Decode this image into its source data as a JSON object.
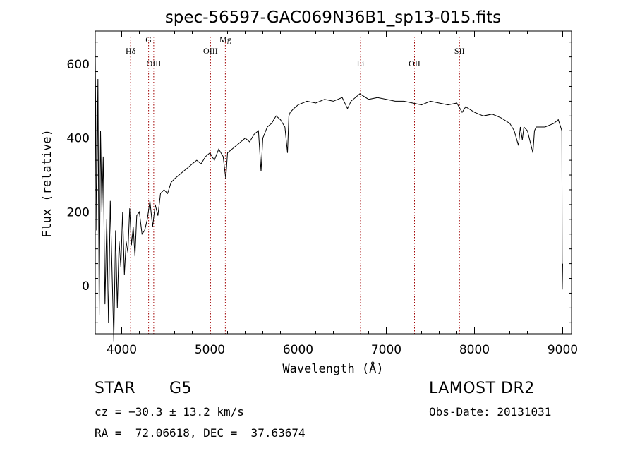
{
  "chart_data": {
    "type": "line",
    "title": "spec-56597-GAC069N36B1_sp13-015.fits",
    "xlabel": "Wavelength (Å)",
    "ylabel": "Flux (relative)",
    "xlim": [
      3700,
      9100
    ],
    "ylim": [
      -130,
      690
    ],
    "x_ticks": [
      4000,
      5000,
      6000,
      7000,
      8000,
      9000
    ],
    "x_tick_labels": [
      "4000",
      "5000",
      "6000",
      "7000",
      "8000",
      "9000"
    ],
    "y_ticks": [
      0,
      200,
      400,
      600
    ],
    "y_tick_labels": [
      "0",
      "200",
      "400",
      "600"
    ],
    "series": [
      {
        "x": [
          3700,
          3715,
          3730,
          3745,
          3760,
          3775,
          3790,
          3810,
          3830,
          3850,
          3870,
          3890,
          3910,
          3930,
          3950,
          3970,
          3990,
          4010,
          4030,
          4050,
          4070,
          4090,
          4110,
          4130,
          4150,
          4170,
          4200,
          4230,
          4260,
          4290,
          4320,
          4350,
          4380,
          4410,
          4440,
          4480,
          4520,
          4560,
          4600,
          4650,
          4700,
          4750,
          4800,
          4850,
          4900,
          4950,
          5000,
          5050,
          5100,
          5150,
          5180,
          5200,
          5250,
          5300,
          5350,
          5400,
          5450,
          5500,
          5550,
          5580,
          5600,
          5650,
          5700,
          5750,
          5800,
          5850,
          5880,
          5895,
          5910,
          5950,
          6000,
          6100,
          6200,
          6300,
          6400,
          6500,
          6560,
          6600,
          6700,
          6800,
          6900,
          7000,
          7100,
          7200,
          7300,
          7400,
          7500,
          7600,
          7700,
          7800,
          7860,
          7900,
          8000,
          8100,
          8200,
          8300,
          8400,
          8450,
          8498,
          8520,
          8542,
          8560,
          8600,
          8662,
          8680,
          8700,
          8800,
          8900,
          8950,
          8990,
          8995,
          9000
        ],
        "y": [
          630,
          150,
          560,
          -80,
          420,
          200,
          350,
          -50,
          180,
          -100,
          230,
          40,
          -150,
          150,
          -60,
          120,
          50,
          200,
          30,
          120,
          90,
          210,
          110,
          160,
          80,
          190,
          200,
          140,
          150,
          180,
          230,
          160,
          220,
          190,
          250,
          260,
          250,
          280,
          290,
          300,
          310,
          320,
          330,
          340,
          330,
          350,
          360,
          340,
          370,
          350,
          290,
          360,
          370,
          380,
          390,
          400,
          390,
          410,
          420,
          310,
          400,
          430,
          440,
          460,
          450,
          430,
          360,
          460,
          470,
          480,
          490,
          500,
          495,
          505,
          500,
          510,
          480,
          500,
          520,
          505,
          510,
          505,
          500,
          500,
          495,
          490,
          500,
          495,
          490,
          495,
          470,
          485,
          470,
          460,
          465,
          455,
          440,
          420,
          380,
          430,
          395,
          430,
          420,
          360,
          420,
          430,
          430,
          440,
          450,
          420,
          -10,
          60
        ]
      }
    ],
    "spectral_lines": [
      {
        "name": "Hδ",
        "x": 4101
      },
      {
        "name": "G",
        "x": 4305
      },
      {
        "name": "OIII",
        "x": 4363
      },
      {
        "name": "OIII",
        "x": 5007
      },
      {
        "name": "Mg",
        "x": 5175
      },
      {
        "name": "Li",
        "x": 6708
      },
      {
        "name": "OII",
        "x": 7320
      },
      {
        "name": "SII",
        "x": 7830
      }
    ],
    "grid": false,
    "legend": "none"
  },
  "info": {
    "object_class": "STAR",
    "subclass": "G5",
    "survey": "LAMOST DR2",
    "redshift": "cz = −30.3 ± 13.2 km/s",
    "obs_date": "Obs-Date: 20131031",
    "coords": "RA =  72.06618, DEC =  37.63674"
  },
  "colors": {
    "line": "#000000",
    "marker_line": "#a00000"
  }
}
